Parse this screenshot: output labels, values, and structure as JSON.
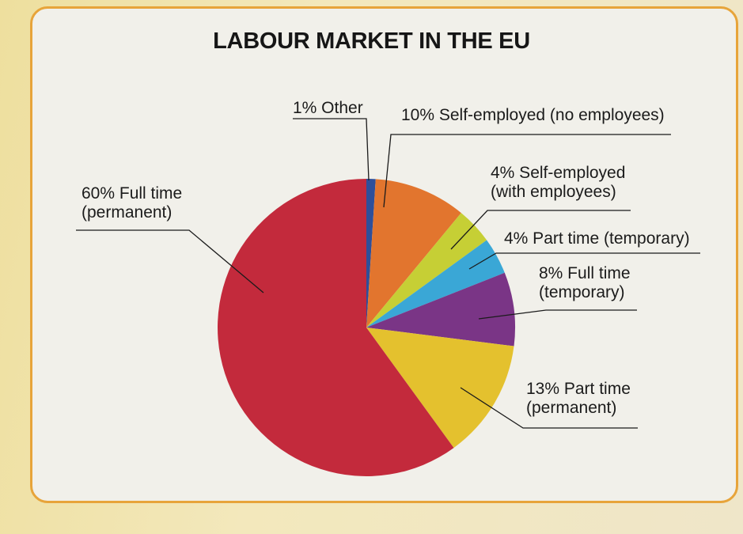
{
  "chart_data": {
    "type": "pie",
    "title": "LABOUR MARKET IN THE EU",
    "slices": [
      {
        "label_lines": [
          "1% Other"
        ],
        "value": 1,
        "color": "#2e4f9a"
      },
      {
        "label_lines": [
          "10% Self-employed (no employees)"
        ],
        "value": 10,
        "color": "#e2752e"
      },
      {
        "label_lines": [
          "4% Self-employed",
          "(with employees)"
        ],
        "value": 4,
        "color": "#c6cf35"
      },
      {
        "label_lines": [
          "4% Part time (temporary)"
        ],
        "value": 4,
        "color": "#3aa7d6"
      },
      {
        "label_lines": [
          "8% Full time",
          "(temporary)"
        ],
        "value": 8,
        "color": "#7a3586"
      },
      {
        "label_lines": [
          "13% Part time",
          "(permanent)"
        ],
        "value": 13,
        "color": "#e4c12e"
      },
      {
        "label_lines": [
          "60% Full time",
          "(permanent)"
        ],
        "value": 60,
        "color": "#c32a3c"
      }
    ]
  }
}
